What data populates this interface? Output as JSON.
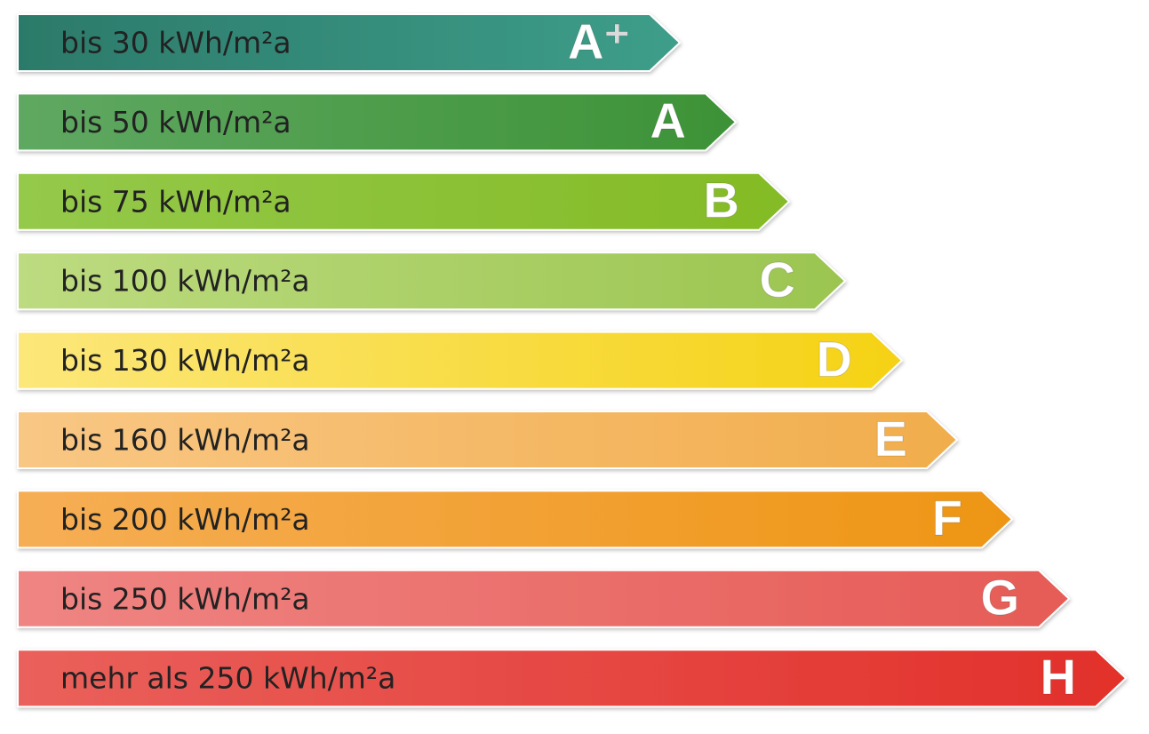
{
  "classes": [
    {
      "label": "bis 30 kWh/m²a",
      "grade": "A⁺"
    },
    {
      "label": "bis 50 kWh/m²a",
      "grade": "A"
    },
    {
      "label": "bis 75 kWh/m²a",
      "grade": "B"
    },
    {
      "label": "bis 100 kWh/m²a",
      "grade": "C"
    },
    {
      "label": "bis 130 kWh/m²a",
      "grade": "D"
    },
    {
      "label": "bis 160 kWh/m²a",
      "grade": "E"
    },
    {
      "label": "bis 200 kWh/m²a",
      "grade": "F"
    },
    {
      "label": "bis 250 kWh/m²a",
      "grade": "G"
    },
    {
      "label": "mehr als 250 kWh/m²a",
      "grade": "H"
    }
  ]
}
